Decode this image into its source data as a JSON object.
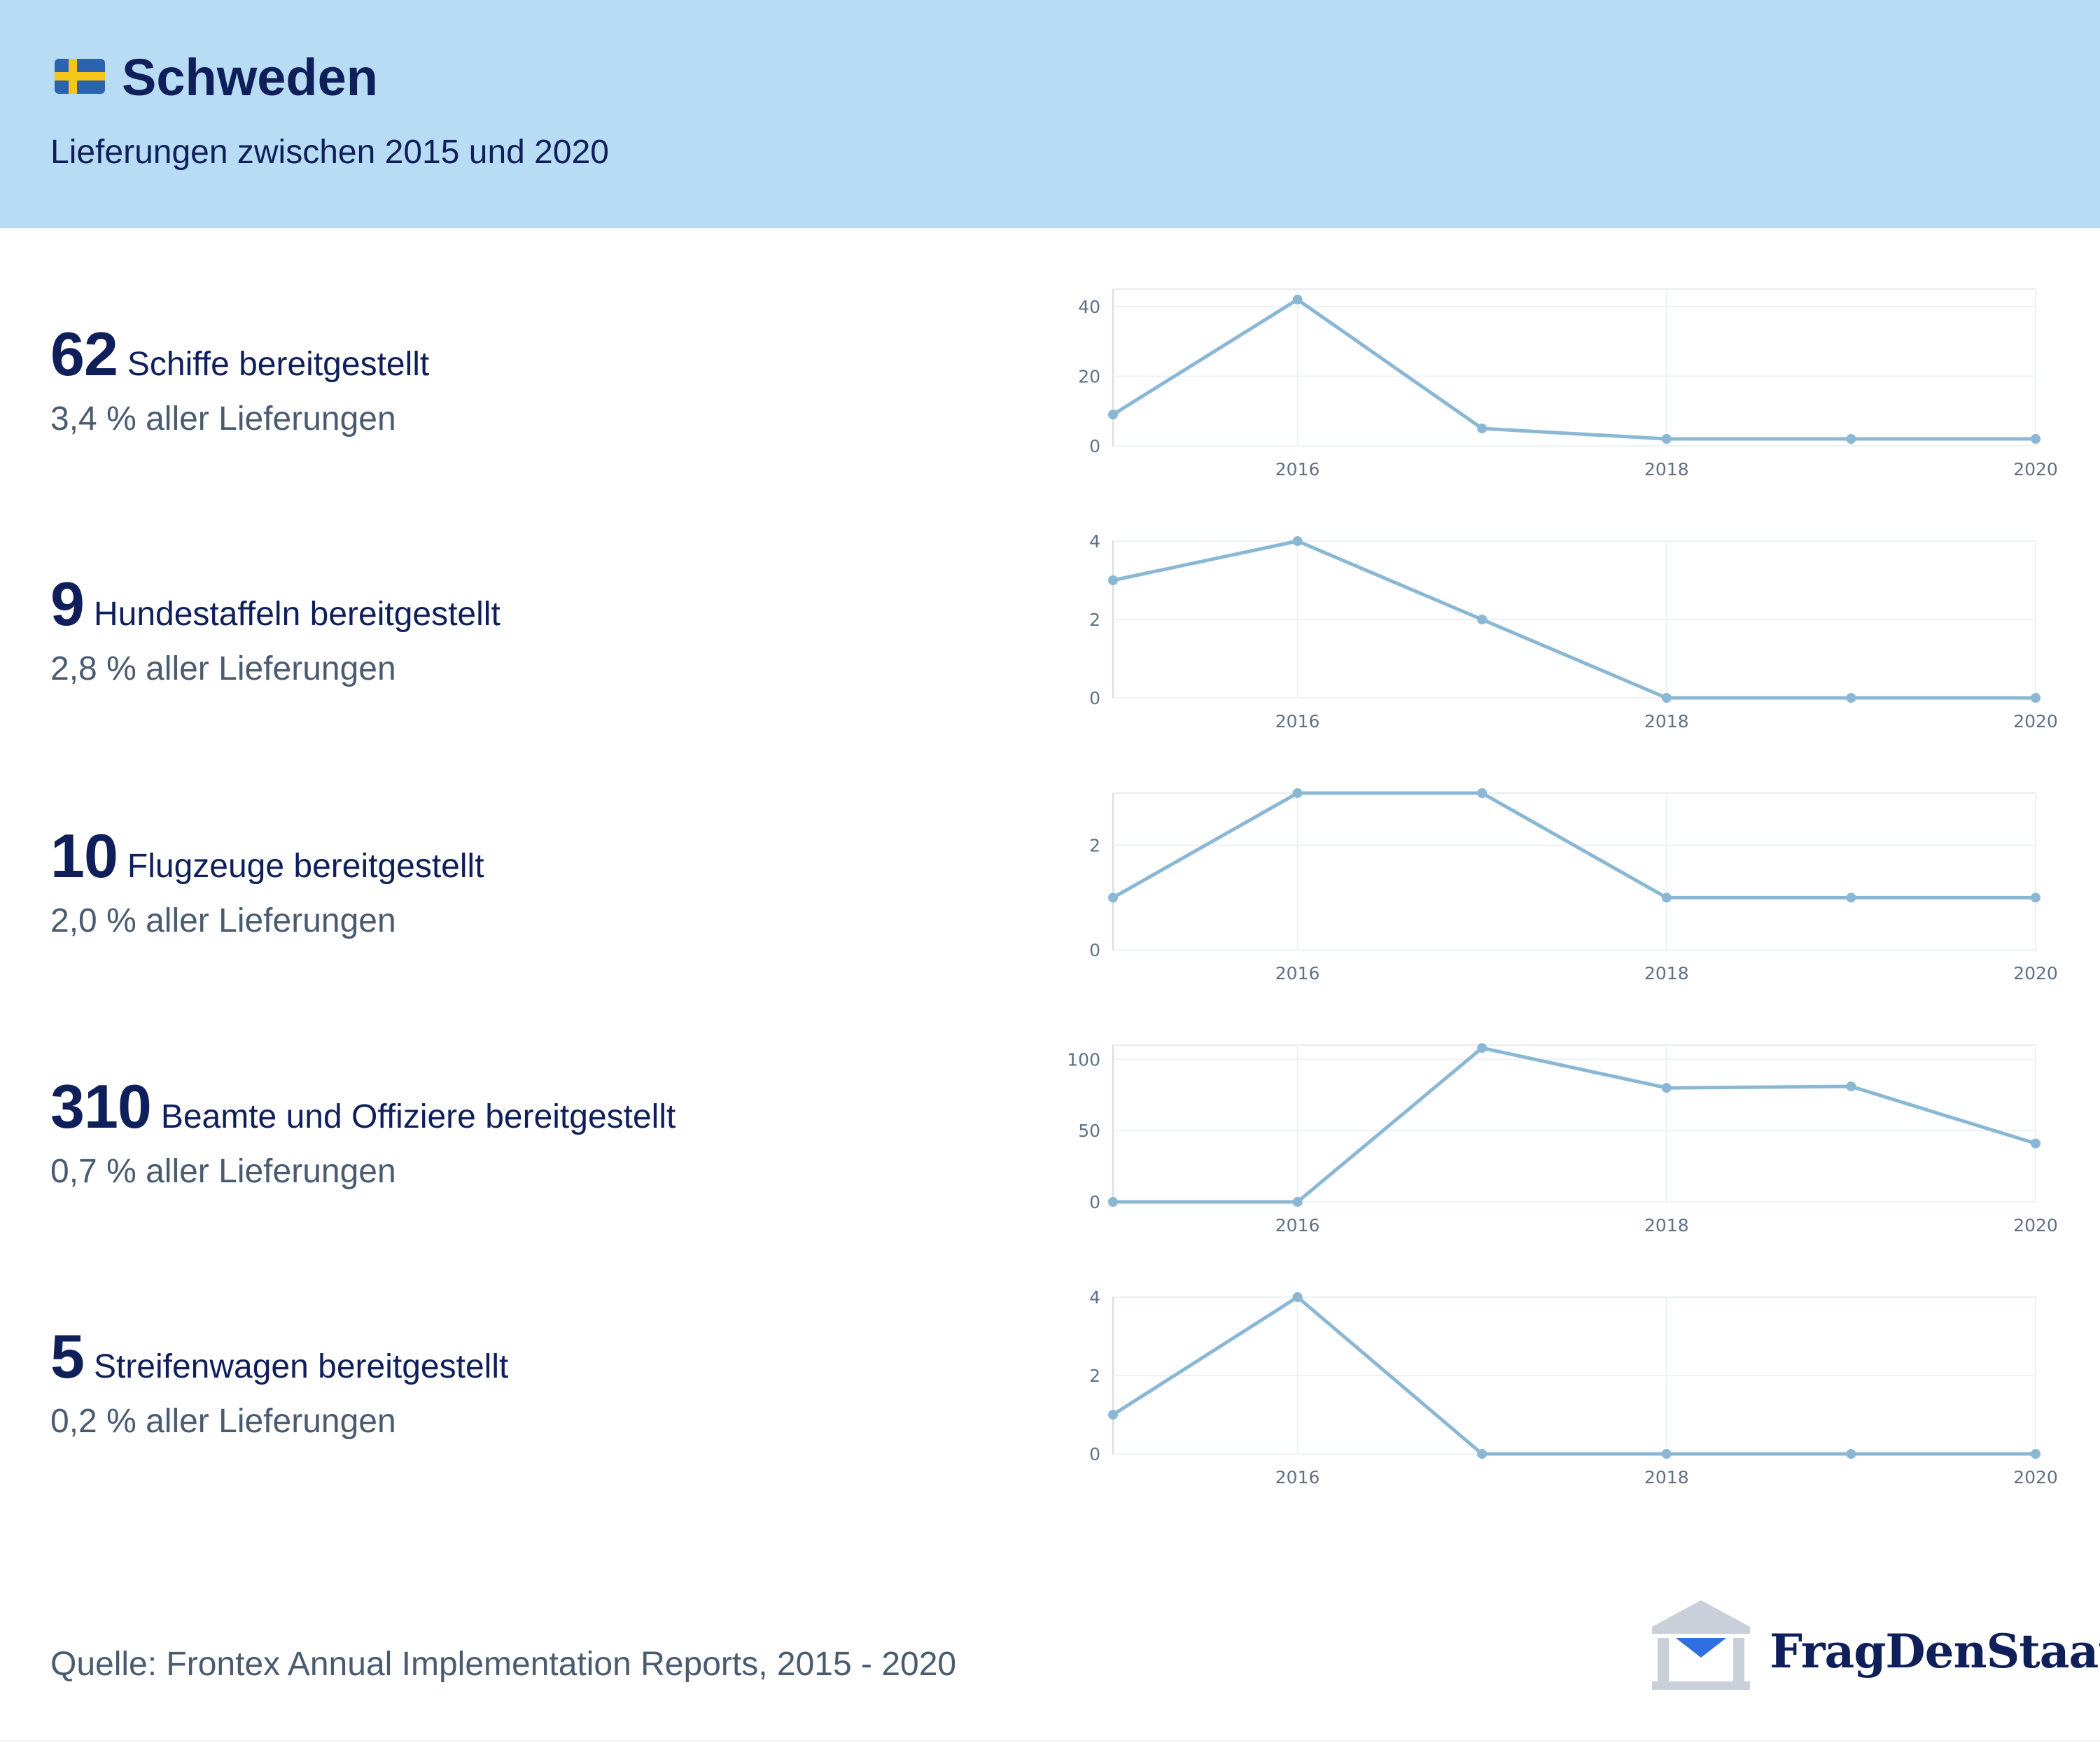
{
  "header": {
    "country": "Schweden",
    "subtitle": "Lieferungen zwischen 2015 und 2020",
    "flag_icon": "sweden-flag-icon",
    "background_color": "#b8dcf4"
  },
  "metrics": [
    {
      "value": "62",
      "label": "Schiffe bereitgestellt",
      "share": "3,4 % aller Lieferungen"
    },
    {
      "value": "9",
      "label": "Hundestaffeln bereitgestellt",
      "share": "2,8 % aller Lieferungen"
    },
    {
      "value": "10",
      "label": "Flugzeuge bereitgestellt",
      "share": "2,0 % aller Lieferungen"
    },
    {
      "value": "310",
      "label": "Beamte und Offiziere bereitgestellt",
      "share": "0,7 % aller Lieferungen"
    },
    {
      "value": "5",
      "label": "Streifenwagen bereitgestellt",
      "share": "0,2 % aller Lieferungen"
    }
  ],
  "chart_data": [
    {
      "type": "line",
      "x": [
        2015,
        2016,
        2017,
        2018,
        2019,
        2020
      ],
      "y": [
        9,
        42,
        5,
        2,
        2,
        2
      ],
      "xticks": [
        2016,
        2018,
        2020
      ],
      "yticks": [
        0,
        20,
        40
      ],
      "ylim": [
        0,
        45
      ],
      "grid": true,
      "color": "#8ab8d4"
    },
    {
      "type": "line",
      "x": [
        2015,
        2016,
        2017,
        2018,
        2019,
        2020
      ],
      "y": [
        3,
        4,
        2,
        0,
        0,
        0
      ],
      "xticks": [
        2016,
        2018,
        2020
      ],
      "yticks": [
        0,
        2,
        4
      ],
      "ylim": [
        0,
        4
      ],
      "grid": true,
      "color": "#8ab8d4"
    },
    {
      "type": "line",
      "x": [
        2015,
        2016,
        2017,
        2018,
        2019,
        2020
      ],
      "y": [
        1,
        3,
        3,
        1,
        1,
        1
      ],
      "xticks": [
        2016,
        2018,
        2020
      ],
      "yticks": [
        0,
        2
      ],
      "ylim": [
        0,
        3
      ],
      "grid": true,
      "color": "#8ab8d4"
    },
    {
      "type": "line",
      "x": [
        2015,
        2016,
        2017,
        2018,
        2019,
        2020
      ],
      "y": [
        0,
        0,
        108,
        80,
        81,
        41
      ],
      "xticks": [
        2016,
        2018,
        2020
      ],
      "yticks": [
        0,
        50,
        100
      ],
      "ylim": [
        0,
        110
      ],
      "grid": true,
      "color": "#8ab8d4"
    },
    {
      "type": "line",
      "x": [
        2015,
        2016,
        2017,
        2018,
        2019,
        2020
      ],
      "y": [
        1,
        4,
        0,
        0,
        0,
        0
      ],
      "xticks": [
        2016,
        2018,
        2020
      ],
      "yticks": [
        0,
        2,
        4
      ],
      "ylim": [
        0,
        4
      ],
      "grid": true,
      "color": "#8ab8d4"
    }
  ],
  "footer": {
    "source": "Quelle: Frontex Annual Implementation Reports, 2015 - 2020",
    "logo_text": "FragDenStaat",
    "logo_icon": "fragdenstaat-building-icon"
  }
}
